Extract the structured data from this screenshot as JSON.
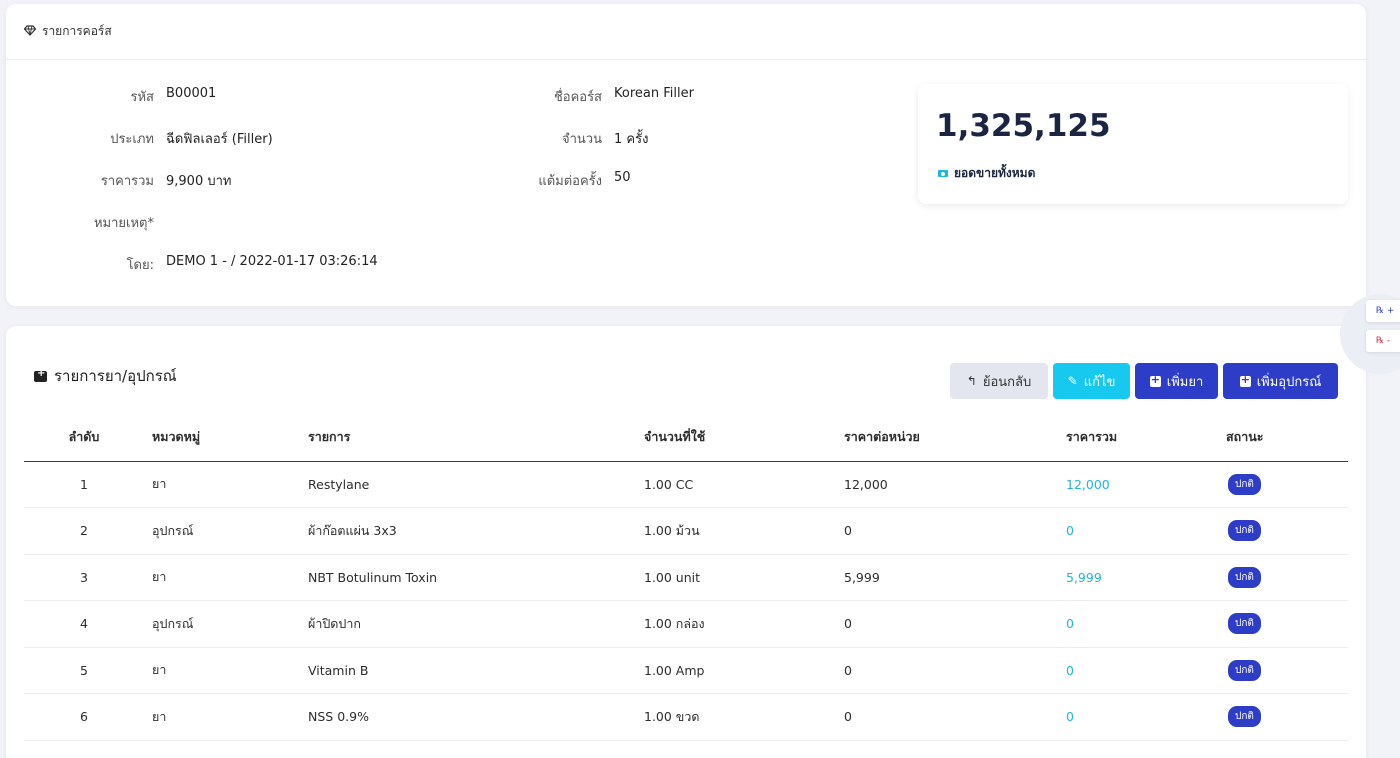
{
  "course": {
    "header": "รายการคอร์ส",
    "fields_left": [
      {
        "label": "รหัส",
        "value": "B00001"
      },
      {
        "label": "ประเภท",
        "value": "ฉีดฟิลเลอร์ (Filler)"
      },
      {
        "label": "ราคารวม",
        "value": "9,900 บาท"
      },
      {
        "label": "หมายเหตุ*",
        "value": ""
      },
      {
        "label": "โดย:",
        "value": "DEMO 1 - / 2022-01-17 03:26:14"
      }
    ],
    "fields_right": [
      {
        "label": "ชื่อคอร์ส",
        "value": "Korean Filler"
      },
      {
        "label": "จำนวน",
        "value": "1 ครั้ง"
      },
      {
        "label": "แต้มต่อครั้ง",
        "value": "50"
      }
    ],
    "stat": {
      "value": "1,325,125",
      "label": "ยอดขายทั้งหมด"
    }
  },
  "items": {
    "title": "รายการยา/อุปกรณ์",
    "buttons": {
      "back": "ย้อนกลับ",
      "edit": "แก้ไข",
      "add_drug": "เพิ่มยา",
      "add_equipment": "เพิ่มอุปกรณ์"
    },
    "columns": [
      "ลำดับ",
      "หมวดหมู่",
      "รายการ",
      "จำนวนที่ใช้",
      "ราคาต่อหน่วย",
      "ราคารวม",
      "สถานะ"
    ],
    "rows": [
      {
        "idx": "1",
        "category": "ยา",
        "name": "Restylane",
        "qty": "1.00 CC",
        "unit_price": "12,000",
        "total": "12,000",
        "status": "ปกติ"
      },
      {
        "idx": "2",
        "category": "อุปกรณ์",
        "name": "ผ้าก๊อตแผ่น 3x3",
        "qty": "1.00 ม้วน",
        "unit_price": "0",
        "total": "0",
        "status": "ปกติ"
      },
      {
        "idx": "3",
        "category": "ยา",
        "name": "NBT Botulinum Toxin",
        "qty": "1.00 unit",
        "unit_price": "5,999",
        "total": "5,999",
        "status": "ปกติ"
      },
      {
        "idx": "4",
        "category": "อุปกรณ์",
        "name": "ผ้าปิดปาก",
        "qty": "1.00 กล่อง",
        "unit_price": "0",
        "total": "0",
        "status": "ปกติ"
      },
      {
        "idx": "5",
        "category": "ยา",
        "name": "Vitamin B",
        "qty": "1.00 Amp",
        "unit_price": "0",
        "total": "0",
        "status": "ปกติ"
      },
      {
        "idx": "6",
        "category": "ยา",
        "name": "NSS 0.9%",
        "qty": "1.00 ขวด",
        "unit_price": "0",
        "total": "0",
        "status": "ปกติ"
      }
    ]
  },
  "side": {
    "plus": "℞ +",
    "minus": "℞ -"
  },
  "icons": {
    "header": "diamond-icon",
    "stat": "money-icon",
    "section": "medkit-icon",
    "back": "reply-icon",
    "edit": "edit-icon",
    "add": "plus-square-icon"
  },
  "colors": {
    "primary": "#2e3dc8",
    "info": "#17c8ef",
    "link": "#1fb6d9",
    "dark": "#1b2541"
  }
}
